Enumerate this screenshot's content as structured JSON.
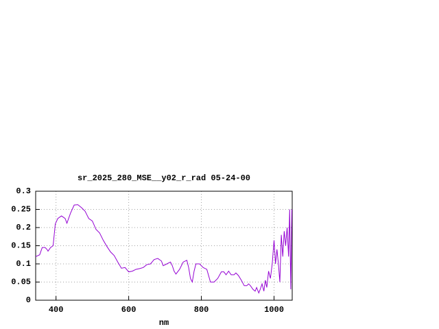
{
  "chart_data": {
    "type": "line",
    "title": "sr_2025_280_MSE__y02_r_rad 05-24-00",
    "x_label": "nm",
    "color": "#9400d3",
    "grid": true,
    "xlim": [
      344,
      1050
    ],
    "ylim": [
      0,
      0.3
    ],
    "xticks": [
      400,
      600,
      800,
      1000
    ],
    "yticks": [
      0,
      0.05,
      0.1,
      0.15,
      0.2,
      0.25,
      0.3
    ],
    "x": [
      344,
      355,
      362,
      370,
      375,
      378,
      385,
      392,
      398,
      405,
      415,
      425,
      430,
      440,
      450,
      460,
      470,
      480,
      490,
      500,
      510,
      520,
      530,
      540,
      550,
      560,
      570,
      580,
      590,
      600,
      610,
      620,
      630,
      640,
      650,
      660,
      670,
      680,
      690,
      695,
      705,
      715,
      720,
      725,
      730,
      740,
      750,
      760,
      765,
      770,
      775,
      780,
      785,
      795,
      805,
      815,
      825,
      835,
      845,
      855,
      862,
      868,
      875,
      882,
      890,
      895,
      902,
      910,
      918,
      925,
      930,
      935,
      942,
      948,
      952,
      958,
      962,
      967,
      972,
      976,
      980,
      985,
      990,
      995,
      1000,
      1004,
      1008,
      1012,
      1016,
      1020,
      1024,
      1028,
      1032,
      1036,
      1040,
      1043,
      1046,
      1049
    ],
    "values": [
      0.12,
      0.125,
      0.145,
      0.145,
      0.14,
      0.135,
      0.145,
      0.15,
      0.21,
      0.225,
      0.232,
      0.225,
      0.212,
      0.24,
      0.262,
      0.263,
      0.255,
      0.245,
      0.225,
      0.218,
      0.195,
      0.185,
      0.165,
      0.148,
      0.133,
      0.123,
      0.105,
      0.088,
      0.09,
      0.078,
      0.08,
      0.085,
      0.087,
      0.09,
      0.098,
      0.1,
      0.112,
      0.115,
      0.108,
      0.095,
      0.1,
      0.105,
      0.095,
      0.08,
      0.072,
      0.085,
      0.105,
      0.11,
      0.09,
      0.06,
      0.05,
      0.08,
      0.1,
      0.1,
      0.09,
      0.085,
      0.05,
      0.05,
      0.06,
      0.078,
      0.078,
      0.07,
      0.08,
      0.07,
      0.07,
      0.075,
      0.068,
      0.055,
      0.04,
      0.04,
      0.045,
      0.04,
      0.03,
      0.025,
      0.035,
      0.02,
      0.03,
      0.045,
      0.025,
      0.055,
      0.035,
      0.08,
      0.06,
      0.1,
      0.165,
      0.1,
      0.14,
      0.1,
      0.05,
      0.18,
      0.12,
      0.19,
      0.15,
      0.2,
      0.12,
      0.25,
      0.03,
      0.25
    ]
  }
}
